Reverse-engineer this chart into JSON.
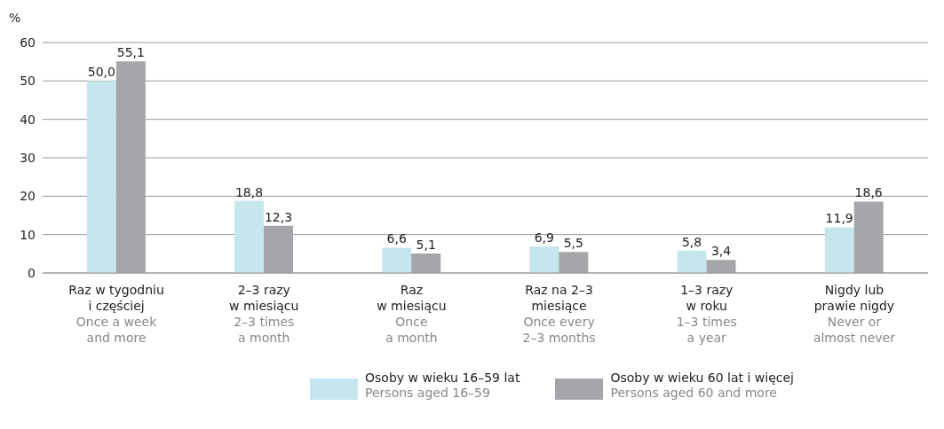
{
  "chart_data": {
    "type": "bar",
    "ylabel": "%",
    "categories": [
      "Raz w tygodniu\ni częściej\nOnce a week\nand more",
      "2–3 razy\nw miesiącu\n2–3 times\na month",
      "Raz\nw miesiącu\nOnce\na month",
      "Raz na 2–3\nmiesiące\nOnce every\n2–3 months",
      "1–3 razy\nw roku\n1–3 times\na year",
      "Nigdy lub\nprawie nigdy\nNever or\nalmost never"
    ],
    "series": [
      {
        "name": "Osoby w wieku 16–59 lat\nPersons aged 16–59",
        "color": "#c5e6ed",
        "values": [
          50.0,
          18.8,
          6.6,
          6.9,
          5.8,
          11.9
        ],
        "value_labels": [
          "50,0",
          "18,8",
          "6,6",
          "6,9",
          "5,8",
          "11,9"
        ]
      },
      {
        "name": "Osoby w wieku 60 lat i więcej\nPersons aged 60 and more",
        "color": "#a6a6aa",
        "values": [
          55.1,
          12.3,
          5.1,
          5.5,
          3.4,
          18.6
        ],
        "value_labels": [
          "55,1",
          "12,3",
          "5,1",
          "5,5",
          "3,4",
          "18,6"
        ]
      }
    ],
    "ylim": [
      0,
      60
    ],
    "yticks": [
      0,
      10,
      20,
      30,
      40,
      50,
      60
    ],
    "grid": "y",
    "legend": "bottom"
  }
}
